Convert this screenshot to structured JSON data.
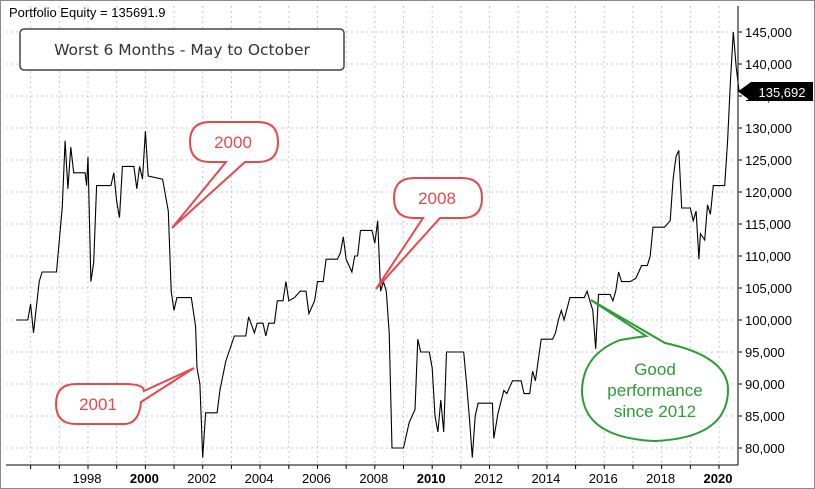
{
  "header": {
    "label": "Portfolio Equity = 135691.9"
  },
  "title_box": {
    "text": "Worst 6 Months - May to October"
  },
  "last_value_label": "135,692",
  "colors": {
    "line": "#000000",
    "red_callout": "#e8474c",
    "green_callout": "#2a9d34",
    "grid": "#c9c9c9"
  },
  "annotations": [
    {
      "text": "2000",
      "color": "red"
    },
    {
      "text": "2001",
      "color": "red"
    },
    {
      "text": "2008",
      "color": "red"
    },
    {
      "text": "Good\nperformance\nsince 2012",
      "color": "green"
    }
  ],
  "chart_data": {
    "type": "line",
    "title": "Worst 6 Months - May to October",
    "xlabel": "",
    "ylabel": "",
    "xlim": [
      1995.5,
      2020.9
    ],
    "ylim": [
      76500,
      148000
    ],
    "grid": true,
    "y_ticks": [
      80000,
      85000,
      90000,
      95000,
      100000,
      105000,
      110000,
      115000,
      120000,
      125000,
      130000,
      135000,
      140000,
      145000
    ],
    "y_tick_labels": [
      "80,000",
      "85,000",
      "90,000",
      "95,000",
      "100,000",
      "105,000",
      "110,000",
      "115,000",
      "120,000",
      "125,000",
      "130,000",
      "135,000",
      "140,000",
      "145,000"
    ],
    "x_ticks": [
      1998,
      2000,
      2002,
      2004,
      2006,
      2008,
      2010,
      2012,
      2014,
      2016,
      2018,
      2020
    ],
    "x_tick_labels": [
      "1998",
      "2000",
      "2002",
      "2004",
      "2006",
      "2008",
      "2010",
      "2012",
      "2014",
      "2016",
      "2018",
      "2020"
    ],
    "x_bold_ticks": [
      "2000",
      "2010",
      "2020"
    ],
    "series": [
      {
        "points": [
          [
            1995.5,
            100000
          ],
          [
            1995.9,
            100000
          ],
          [
            1996.0,
            102500
          ],
          [
            1996.1,
            98000
          ],
          [
            1996.3,
            106000
          ],
          [
            1996.4,
            107500
          ],
          [
            1996.9,
            107500
          ],
          [
            1997.1,
            117500
          ],
          [
            1997.2,
            128000
          ],
          [
            1997.3,
            120500
          ],
          [
            1997.4,
            127000
          ],
          [
            1997.5,
            123000
          ],
          [
            1997.9,
            123000
          ],
          [
            1997.95,
            121000
          ],
          [
            1998.0,
            125500
          ],
          [
            1998.1,
            106000
          ],
          [
            1998.2,
            109000
          ],
          [
            1998.3,
            121000
          ],
          [
            1998.8,
            121000
          ],
          [
            1998.9,
            123000
          ],
          [
            1999.0,
            118500
          ],
          [
            1999.1,
            116000
          ],
          [
            1999.2,
            124000
          ],
          [
            1999.6,
            124000
          ],
          [
            1999.7,
            120500
          ],
          [
            1999.8,
            124000
          ],
          [
            1999.9,
            122000
          ],
          [
            2000.0,
            129500
          ],
          [
            2000.1,
            122500
          ],
          [
            2000.6,
            122000
          ],
          [
            2000.8,
            117000
          ],
          [
            2000.9,
            104500
          ],
          [
            2001.0,
            101500
          ],
          [
            2001.1,
            103500
          ],
          [
            2001.6,
            103500
          ],
          [
            2001.75,
            99000
          ],
          [
            2001.8,
            92500
          ],
          [
            2001.9,
            90000
          ],
          [
            2002.0,
            78500
          ],
          [
            2002.1,
            85500
          ],
          [
            2002.5,
            85500
          ],
          [
            2002.6,
            89000
          ],
          [
            2002.8,
            93500
          ],
          [
            2003.1,
            97500
          ],
          [
            2003.5,
            97500
          ],
          [
            2003.6,
            100500
          ],
          [
            2003.8,
            98000
          ],
          [
            2003.9,
            99500
          ],
          [
            2004.1,
            99500
          ],
          [
            2004.2,
            97500
          ],
          [
            2004.3,
            99500
          ],
          [
            2004.5,
            99500
          ],
          [
            2004.6,
            103000
          ],
          [
            2004.8,
            103000
          ],
          [
            2004.9,
            106000
          ],
          [
            2005.0,
            103000
          ],
          [
            2005.2,
            103500
          ],
          [
            2005.4,
            104500
          ],
          [
            2005.6,
            104500
          ],
          [
            2005.7,
            101000
          ],
          [
            2005.9,
            103000
          ],
          [
            2006.0,
            106000
          ],
          [
            2006.2,
            106000
          ],
          [
            2006.3,
            109500
          ],
          [
            2006.7,
            109500
          ],
          [
            2006.8,
            110500
          ],
          [
            2006.9,
            113000
          ],
          [
            2007.0,
            109500
          ],
          [
            2007.2,
            107500
          ],
          [
            2007.3,
            110000
          ],
          [
            2007.4,
            110000
          ],
          [
            2007.5,
            114000
          ],
          [
            2007.9,
            114000
          ],
          [
            2008.0,
            112000
          ],
          [
            2008.1,
            115500
          ],
          [
            2008.2,
            104500
          ],
          [
            2008.3,
            106000
          ],
          [
            2008.4,
            104500
          ],
          [
            2008.5,
            98000
          ],
          [
            2008.6,
            80000
          ],
          [
            2009.0,
            80000
          ],
          [
            2009.2,
            84000
          ],
          [
            2009.4,
            86000
          ],
          [
            2009.5,
            97000
          ],
          [
            2009.6,
            95000
          ],
          [
            2009.7,
            95000
          ],
          [
            2009.9,
            95000
          ],
          [
            2010.0,
            92500
          ],
          [
            2010.1,
            85000
          ],
          [
            2010.2,
            82500
          ],
          [
            2010.3,
            87500
          ],
          [
            2010.4,
            82500
          ],
          [
            2010.5,
            95000
          ],
          [
            2011.1,
            95000
          ],
          [
            2011.2,
            90000
          ],
          [
            2011.3,
            84500
          ],
          [
            2011.4,
            78500
          ],
          [
            2011.5,
            85000
          ],
          [
            2011.6,
            87000
          ],
          [
            2012.1,
            87000
          ],
          [
            2012.15,
            81500
          ],
          [
            2012.3,
            85500
          ],
          [
            2012.5,
            89000
          ],
          [
            2012.6,
            88500
          ],
          [
            2012.8,
            90500
          ],
          [
            2013.1,
            90500
          ],
          [
            2013.2,
            88500
          ],
          [
            2013.4,
            88500
          ],
          [
            2013.5,
            92000
          ],
          [
            2013.6,
            90500
          ],
          [
            2013.8,
            97000
          ],
          [
            2014.2,
            97000
          ],
          [
            2014.3,
            98000
          ],
          [
            2014.4,
            100000
          ],
          [
            2014.5,
            101500
          ],
          [
            2014.6,
            100000
          ],
          [
            2014.8,
            103500
          ],
          [
            2015.3,
            103500
          ],
          [
            2015.4,
            104500
          ],
          [
            2015.5,
            103000
          ],
          [
            2015.6,
            101500
          ],
          [
            2015.7,
            95500
          ],
          [
            2015.8,
            104000
          ],
          [
            2016.2,
            104000
          ],
          [
            2016.3,
            103000
          ],
          [
            2016.4,
            104500
          ],
          [
            2016.5,
            107500
          ],
          [
            2016.6,
            106000
          ],
          [
            2016.8,
            106000
          ],
          [
            2016.9,
            106000
          ],
          [
            2017.1,
            106500
          ],
          [
            2017.3,
            108500
          ],
          [
            2017.5,
            108500
          ],
          [
            2017.6,
            110000
          ],
          [
            2017.7,
            114500
          ],
          [
            2018.1,
            114500
          ],
          [
            2018.3,
            115500
          ],
          [
            2018.4,
            122000
          ],
          [
            2018.5,
            125500
          ],
          [
            2018.6,
            126500
          ],
          [
            2018.7,
            117500
          ],
          [
            2019.0,
            117500
          ],
          [
            2019.1,
            115500
          ],
          [
            2019.2,
            117000
          ],
          [
            2019.3,
            109500
          ],
          [
            2019.35,
            113500
          ],
          [
            2019.5,
            112500
          ],
          [
            2019.6,
            118000
          ],
          [
            2019.7,
            116500
          ],
          [
            2019.8,
            121000
          ],
          [
            2020.2,
            121000
          ],
          [
            2020.3,
            128000
          ],
          [
            2020.4,
            137500
          ],
          [
            2020.5,
            145000
          ],
          [
            2020.6,
            139500
          ],
          [
            2020.7,
            135700
          ],
          [
            2020.9,
            135700
          ]
        ]
      }
    ]
  }
}
